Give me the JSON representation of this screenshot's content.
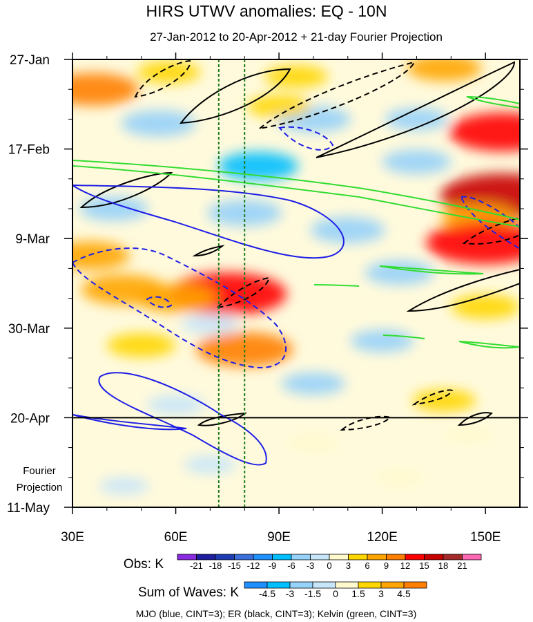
{
  "chart_data": {
    "type": "heatmap",
    "title": "HIRS UTWV anomalies: EQ - 10N",
    "subtitle": "27-Jan-2012 to 20-Apr-2012 + 21-day Fourier Projection",
    "x_axis": {
      "range": [
        30,
        160
      ],
      "ticks": [
        {
          "value": 30,
          "label": "30E"
        },
        {
          "value": 60,
          "label": "60E"
        },
        {
          "value": 90,
          "label": "90E"
        },
        {
          "value": 120,
          "label": "120E"
        },
        {
          "value": 150,
          "label": "150E"
        }
      ],
      "minor_step": 10
    },
    "y_axis": {
      "range_days": [
        0,
        105
      ],
      "direction": "time increases downward",
      "ticks": [
        {
          "day": 0,
          "label": "27-Jan"
        },
        {
          "day": 21,
          "label": "17-Feb"
        },
        {
          "day": 42,
          "label": "9-Mar"
        },
        {
          "day": 63,
          "label": "30-Mar"
        },
        {
          "day": 84,
          "label": "20-Apr"
        },
        {
          "day": 105,
          "label": "11-May"
        }
      ],
      "minor_step_days": 7
    },
    "projection_label_line1": "Fourier",
    "projection_label_line2": "Projection",
    "projection_start_day": 84,
    "reference_longitudes": [
      72.5,
      80
    ],
    "obs_colorbar": {
      "label": "Obs: K",
      "levels": [
        "-21",
        "-18",
        "-15",
        "-12",
        "-9",
        "-6",
        "-3",
        "0",
        "3",
        "6",
        "9",
        "12",
        "15",
        "18",
        "21"
      ],
      "colors": [
        "#8a2be2",
        "#1e1ea0",
        "#1e3cb4",
        "#3c6edc",
        "#1e90ff",
        "#00bfff",
        "#96d2fa",
        "#c8e6fa",
        "#fffacd",
        "#ffd700",
        "#ffa500",
        "#ff7f00",
        "#ff0000",
        "#c80000",
        "#a52a2a",
        "#ff69b4"
      ]
    },
    "waves_colorbar": {
      "label": "Sum of Waves: K",
      "levels": [
        "-4.5",
        "-3",
        "-1.5",
        "0",
        "1.5",
        "3",
        "4.5"
      ],
      "colors": [
        "#1e90ff",
        "#00bfff",
        "#96d2fa",
        "#c8e6fa",
        "#fffacd",
        "#ffd700",
        "#ffa500",
        "#ff7f00"
      ]
    },
    "contour_legend": "MJO (blue, CINT=3); ER (black, CINT=3); Kelvin (green, CINT=3)",
    "contour_colors": {
      "mjo": "#1e1ee6",
      "er": "#000000",
      "kelvin": "#32dc32"
    },
    "anomaly_features": [
      {
        "lon": 36,
        "day": 7,
        "value": 9
      },
      {
        "lon": 58,
        "day": 3,
        "value": 4
      },
      {
        "lon": 95,
        "day": 4,
        "value": 4
      },
      {
        "lon": 138,
        "day": 2,
        "value": 6
      },
      {
        "lon": 55,
        "day": 15,
        "value": -6
      },
      {
        "lon": 100,
        "day": 14,
        "value": -6
      },
      {
        "lon": 90,
        "day": 11,
        "value": 4
      },
      {
        "lon": 130,
        "day": 14,
        "value": -4
      },
      {
        "lon": 155,
        "day": 17,
        "value": 12
      },
      {
        "lon": 84,
        "day": 25,
        "value": -7
      },
      {
        "lon": 130,
        "day": 24,
        "value": -5
      },
      {
        "lon": 155,
        "day": 32,
        "value": 15
      },
      {
        "lon": 148,
        "day": 37,
        "value": 6
      },
      {
        "lon": 150,
        "day": 43,
        "value": 14
      },
      {
        "lon": 42,
        "day": 35,
        "value": -5
      },
      {
        "lon": 80,
        "day": 36,
        "value": -6
      },
      {
        "lon": 110,
        "day": 40,
        "value": -6
      },
      {
        "lon": 125,
        "day": 50,
        "value": -5
      },
      {
        "lon": 35,
        "day": 46,
        "value": 7
      },
      {
        "lon": 45,
        "day": 54,
        "value": 8
      },
      {
        "lon": 75,
        "day": 55,
        "value": 14
      },
      {
        "lon": 60,
        "day": 56,
        "value": 7
      },
      {
        "lon": 70,
        "day": 62,
        "value": -3
      },
      {
        "lon": 50,
        "day": 67,
        "value": 5
      },
      {
        "lon": 80,
        "day": 68,
        "value": 10
      },
      {
        "lon": 120,
        "day": 66,
        "value": -4
      },
      {
        "lon": 100,
        "day": 76,
        "value": -4
      },
      {
        "lon": 138,
        "day": 80,
        "value": 4
      },
      {
        "lon": 60,
        "day": 81,
        "value": -3
      },
      {
        "lon": 150,
        "day": 58,
        "value": 5
      },
      {
        "lon": 100,
        "day": 90,
        "value": 2
      },
      {
        "lon": 70,
        "day": 95,
        "value": -2
      },
      {
        "lon": 125,
        "day": 98,
        "value": 1.5
      },
      {
        "lon": 45,
        "day": 100,
        "value": -1.5
      },
      {
        "lon": 145,
        "day": 88,
        "value": 1.5
      }
    ]
  }
}
